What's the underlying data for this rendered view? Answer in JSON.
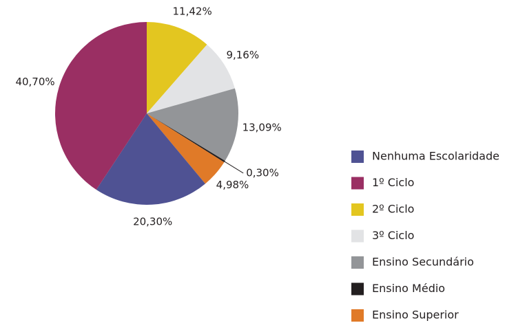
{
  "chart_data": {
    "type": "pie",
    "categories": [
      "Nenhuma Escolaridade",
      "1º Ciclo",
      "2º Ciclo",
      "3º Ciclo",
      "Ensino Secundário",
      "Ensino Médio",
      "Ensino Superior"
    ],
    "values": [
      20.3,
      40.7,
      11.42,
      9.16,
      13.09,
      0.3,
      4.98
    ],
    "value_labels": [
      "20,30%",
      "40,70%",
      "11,42%",
      "9,16%",
      "13,09%",
      "0,30%",
      "4,98%"
    ],
    "colors": [
      "#4f5293",
      "#9a2f63",
      "#e3c620",
      "#e2e3e5",
      "#939598",
      "#231f20",
      "#e07a28"
    ]
  }
}
